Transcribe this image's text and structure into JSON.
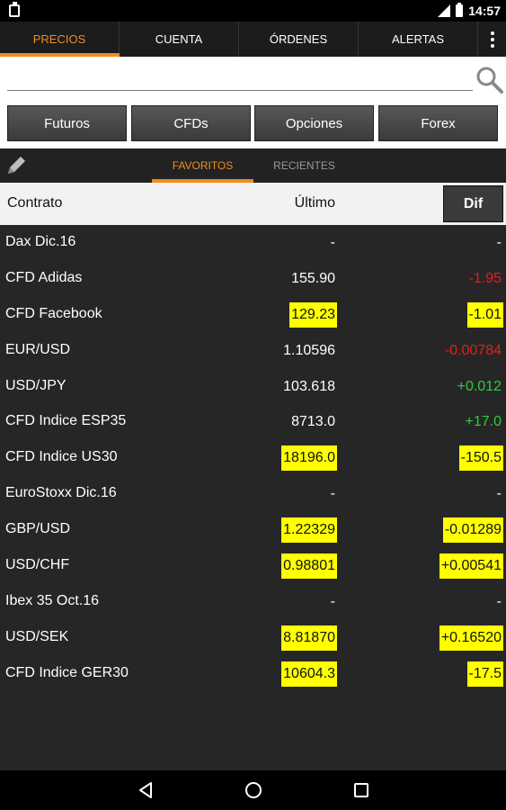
{
  "status_bar": {
    "time": "14:57"
  },
  "top_tabs": [
    {
      "label": "PRECIOS",
      "active": true
    },
    {
      "label": "CUENTA",
      "active": false
    },
    {
      "label": "ÓRDENES",
      "active": false
    },
    {
      "label": "ALERTAS",
      "active": false
    }
  ],
  "search": {
    "value": "",
    "placeholder": ""
  },
  "categories": [
    "Futuros",
    "CFDs",
    "Opciones",
    "Forex"
  ],
  "sub_tabs": [
    {
      "label": "FAVORITOS",
      "active": true
    },
    {
      "label": "RECIENTES",
      "active": false
    }
  ],
  "table": {
    "headers": {
      "contract": "Contrato",
      "last": "Último",
      "dif": "Dif"
    },
    "rows": [
      {
        "name": "Dax Dic.16",
        "last": "-",
        "dif": "-",
        "last_hl": false,
        "dif_hl": false,
        "dir": "none"
      },
      {
        "name": "CFD Adidas",
        "last": "155.90",
        "dif": "-1.95",
        "last_hl": false,
        "dif_hl": false,
        "dir": "neg"
      },
      {
        "name": "CFD Facebook",
        "last": "129.23",
        "dif": "-1.01",
        "last_hl": true,
        "dif_hl": true,
        "dir": "neg"
      },
      {
        "name": "EUR/USD",
        "last": "1.10596",
        "dif": "-0.00784",
        "last_hl": false,
        "dif_hl": false,
        "dir": "neg"
      },
      {
        "name": "USD/JPY",
        "last": "103.618",
        "dif": "+0.012",
        "last_hl": false,
        "dif_hl": false,
        "dir": "pos"
      },
      {
        "name": "CFD Indice ESP35",
        "last": "8713.0",
        "dif": "+17.0",
        "last_hl": false,
        "dif_hl": false,
        "dir": "pos"
      },
      {
        "name": "CFD Indice US30",
        "last": "18196.0",
        "dif": "-150.5",
        "last_hl": true,
        "dif_hl": true,
        "dir": "neg"
      },
      {
        "name": "EuroStoxx Dic.16",
        "last": "-",
        "dif": "-",
        "last_hl": false,
        "dif_hl": false,
        "dir": "none"
      },
      {
        "name": "GBP/USD",
        "last": "1.22329",
        "dif": "-0.01289",
        "last_hl": true,
        "dif_hl": true,
        "dir": "neg"
      },
      {
        "name": "USD/CHF",
        "last": "0.98801",
        "dif": "+0.00541",
        "last_hl": true,
        "dif_hl": true,
        "dir": "pos"
      },
      {
        "name": "Ibex 35 Oct.16",
        "last": "-",
        "dif": "-",
        "last_hl": false,
        "dif_hl": false,
        "dir": "none"
      },
      {
        "name": "USD/SEK",
        "last": "8.81870",
        "dif": "+0.16520",
        "last_hl": true,
        "dif_hl": true,
        "dir": "pos"
      },
      {
        "name": "CFD Indice GER30",
        "last": "10604.3",
        "dif": "-17.5",
        "last_hl": true,
        "dif_hl": true,
        "dir": "neg"
      }
    ]
  },
  "colors": {
    "accent": "#f08c1e",
    "highlight": "#ffff00",
    "negative": "#e02020",
    "positive": "#2ecc40"
  }
}
